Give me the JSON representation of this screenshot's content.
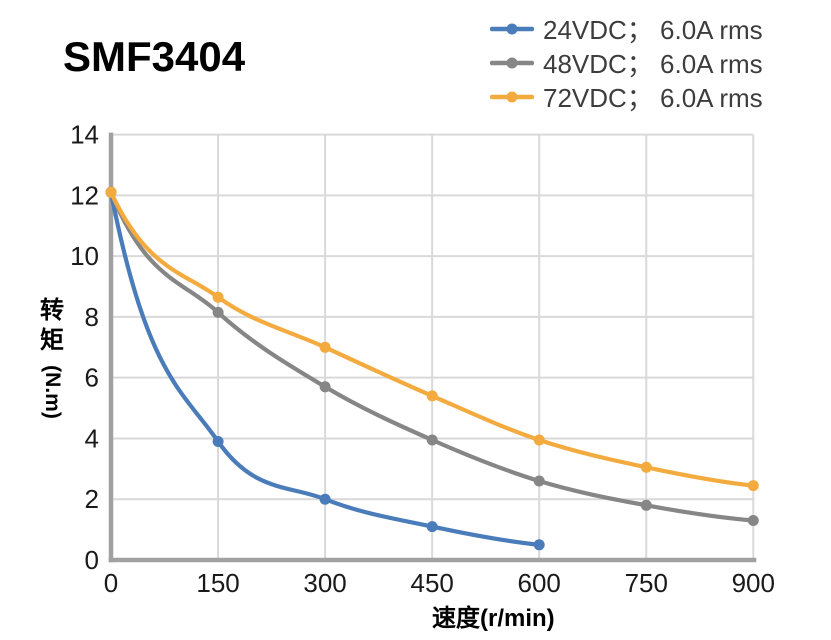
{
  "title": "SMF3404",
  "labels": {
    "x_label": "速度(r/min)",
    "y_label_cn": "转矩",
    "y_label_unit": "(N.m)"
  },
  "colors": {
    "series_24vdc": "#4a7cba",
    "series_48vdc": "#868686",
    "series_72vdc": "#f3ab3f",
    "gridline": "#d9d9d9",
    "axis": "#a1a1a1",
    "tick_text": "#1a1a1a",
    "legend_text": "#3d3d3d",
    "background": "#ffffff"
  },
  "chart_data": {
    "type": "line",
    "title": "SMF3404",
    "xlabel": "速度(r/min)",
    "ylabel": "转矩(N.m)",
    "xlim": [
      0,
      900
    ],
    "ylim": [
      0,
      14
    ],
    "x_ticks": [
      0,
      150,
      300,
      450,
      600,
      750,
      900
    ],
    "y_ticks": [
      0,
      2,
      4,
      6,
      8,
      10,
      12,
      14
    ],
    "grid": true,
    "legend_position": "top-right",
    "marker": "circle",
    "series": [
      {
        "name": "24VDC； 6.0A rms",
        "color": "#4a7cba",
        "x": [
          0,
          150,
          300,
          450,
          600
        ],
        "y": [
          12.1,
          3.9,
          2.0,
          1.1,
          0.5
        ]
      },
      {
        "name": "48VDC； 6.0A rms",
        "color": "#868686",
        "x": [
          0,
          150,
          300,
          450,
          600,
          750,
          900
        ],
        "y": [
          12.1,
          8.15,
          5.7,
          3.95,
          2.6,
          1.8,
          1.3
        ]
      },
      {
        "name": "72VDC； 6.0A rms",
        "color": "#f3ab3f",
        "x": [
          0,
          150,
          300,
          450,
          600,
          750,
          900
        ],
        "y": [
          12.1,
          8.65,
          7.0,
          5.4,
          3.95,
          3.05,
          2.45
        ]
      }
    ]
  }
}
